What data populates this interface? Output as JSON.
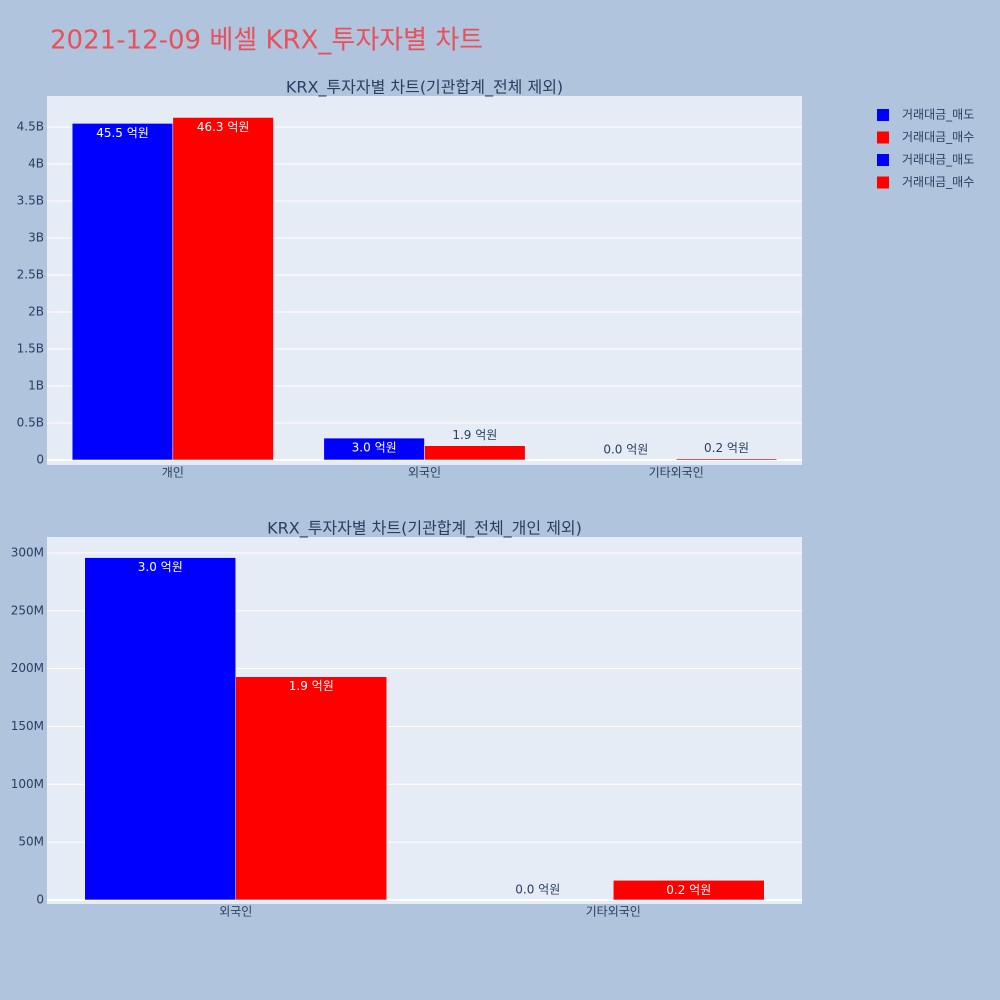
{
  "title": "2021-12-09 베셀 KRX_투자자별 차트",
  "chart_data": [
    {
      "type": "bar",
      "title": "KRX_투자자별 차트(기관합계_전체 제외)",
      "categories": [
        "개인",
        "외국인",
        "기타외국인"
      ],
      "series": [
        {
          "name": "거래대금_매도",
          "color": "#0000ff",
          "values": [
            4550000000,
            296000000,
            0
          ],
          "value_labels": [
            "45.5 억원",
            "3.0 억원",
            "0.0 억원"
          ]
        },
        {
          "name": "거래대금_매수",
          "color": "#ff0000",
          "values": [
            4630000000,
            193000000,
            17000000
          ],
          "value_labels": [
            "46.3 억원",
            "1.9 억원",
            "0.2 억원"
          ]
        }
      ],
      "ylim": [
        -68000000,
        4920000000
      ],
      "yticks": [
        0,
        {
          "value": 500000000,
          "label": "0.5B"
        },
        {
          "value": 1000000000,
          "label": "1B"
        },
        {
          "value": 1500000000,
          "label": "1.5B"
        },
        {
          "value": 2000000000,
          "label": "2B"
        },
        {
          "value": 2500000000,
          "label": "2.5B"
        },
        {
          "value": 3000000000,
          "label": "3B"
        },
        {
          "value": 3500000000,
          "label": "3.5B"
        },
        {
          "value": 4000000000,
          "label": "4B"
        },
        {
          "value": 4500000000,
          "label": "4.5B"
        }
      ],
      "grid": true
    },
    {
      "type": "bar",
      "title": "KRX_투자자별 차트(기관합계_전체_개인 제외)",
      "categories": [
        "외국인",
        "기타외국인"
      ],
      "series": [
        {
          "name": "거래대금_매도",
          "color": "#0000ff",
          "values": [
            296000000,
            0
          ],
          "value_labels": [
            "3.0 억원",
            "0.0 억원"
          ]
        },
        {
          "name": "거래대금_매수",
          "color": "#ff0000",
          "values": [
            193000000,
            17000000
          ],
          "value_labels": [
            "1.9 억원",
            "0.2 억원"
          ]
        }
      ],
      "ylim": [
        -3500000,
        313800000
      ],
      "yticks": [
        0,
        {
          "value": 50000000,
          "label": "50M"
        },
        {
          "value": 100000000,
          "label": "100M"
        },
        {
          "value": 150000000,
          "label": "150M"
        },
        {
          "value": 200000000,
          "label": "200M"
        },
        {
          "value": 250000000,
          "label": "250M"
        },
        {
          "value": 300000000,
          "label": "300M"
        }
      ],
      "grid": true
    }
  ]
}
